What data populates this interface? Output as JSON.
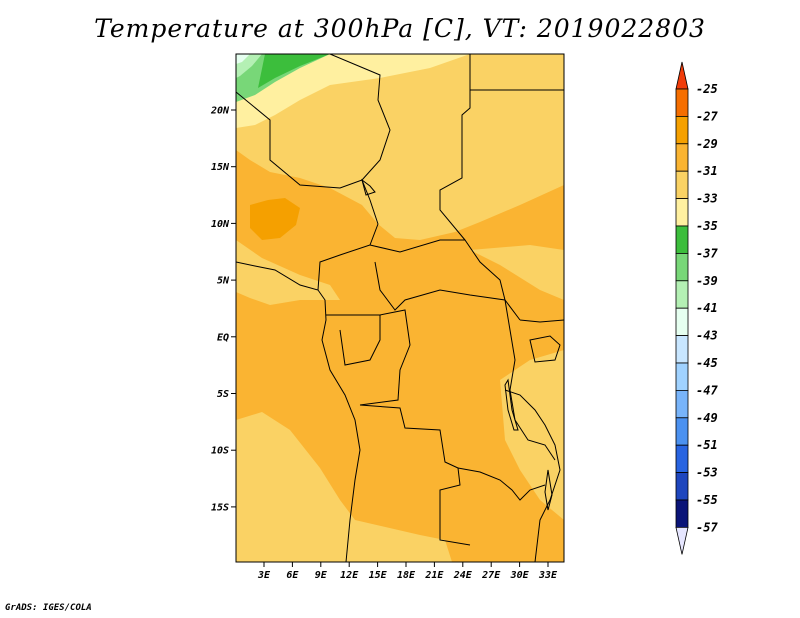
{
  "title": "Temperature at 300hPa [C], VT: 2019022803",
  "credit": "GrADS: IGES/COLA",
  "map": {
    "lat_ticks": [
      "20N",
      "15N",
      "10N",
      "5N",
      "EQ",
      "5S",
      "10S",
      "15S"
    ],
    "lon_ticks": [
      "3E",
      "6E",
      "9E",
      "12E",
      "15E",
      "18E",
      "21E",
      "24E",
      "27E",
      "30E",
      "33E"
    ]
  },
  "colorbar": {
    "labels": [
      "-25",
      "-27",
      "-29",
      "-31",
      "-33",
      "-35",
      "-37",
      "-39",
      "-41",
      "-43",
      "-45",
      "-47",
      "-49",
      "-51",
      "-53",
      "-55",
      "-57"
    ],
    "colors": [
      "#f03c0a",
      "#f56e00",
      "#f5a000",
      "#fab432",
      "#fad264",
      "#fff0a0",
      "#3cbe3c",
      "#78d778",
      "#b4f0b4",
      "#e6fff0",
      "#c8e6ff",
      "#a0d2ff",
      "#78b4fa",
      "#4b91f0",
      "#2864e1",
      "#1e46be",
      "#0a1478",
      "#e6e6ff"
    ]
  }
}
